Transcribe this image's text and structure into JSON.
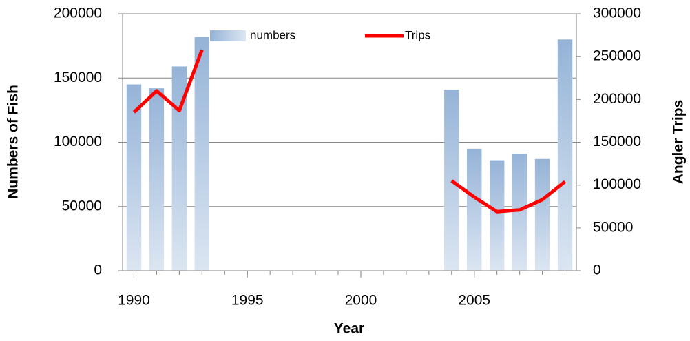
{
  "chart_data": {
    "type": "bar-line",
    "x_label": "Year",
    "y_label": "Numbers of Fish",
    "y2_label": "Angler Trips",
    "x": [
      1990,
      1991,
      1992,
      1993,
      1994,
      1995,
      1996,
      1997,
      1998,
      1999,
      2000,
      2001,
      2002,
      2003,
      2004,
      2005,
      2006,
      2007,
      2008,
      2009
    ],
    "series": [
      {
        "name": "numbers",
        "type": "bar",
        "color": "#95b3d7",
        "values": [
          145000,
          142000,
          159000,
          182000,
          null,
          null,
          null,
          null,
          null,
          null,
          null,
          null,
          null,
          null,
          141000,
          95000,
          86000,
          91000,
          87000,
          180000
        ]
      },
      {
        "name": "Trips",
        "type": "line",
        "axis": "y2",
        "color": "#ff0000",
        "values": [
          185000,
          210000,
          187000,
          258000,
          null,
          null,
          null,
          null,
          null,
          null,
          null,
          null,
          null,
          null,
          105000,
          86000,
          69000,
          71000,
          83000,
          104000
        ]
      }
    ],
    "xlim": [
      1989.5,
      2009.5
    ],
    "xticks": [
      1990,
      1995,
      2000,
      2005
    ],
    "ylim": [
      0,
      200000
    ],
    "yticks": [
      0,
      50000,
      100000,
      150000,
      200000
    ],
    "y2lim": [
      0,
      300000
    ],
    "y2ticks": [
      0,
      50000,
      100000,
      150000,
      200000,
      250000,
      300000
    ],
    "grid": true,
    "legend": "top"
  }
}
